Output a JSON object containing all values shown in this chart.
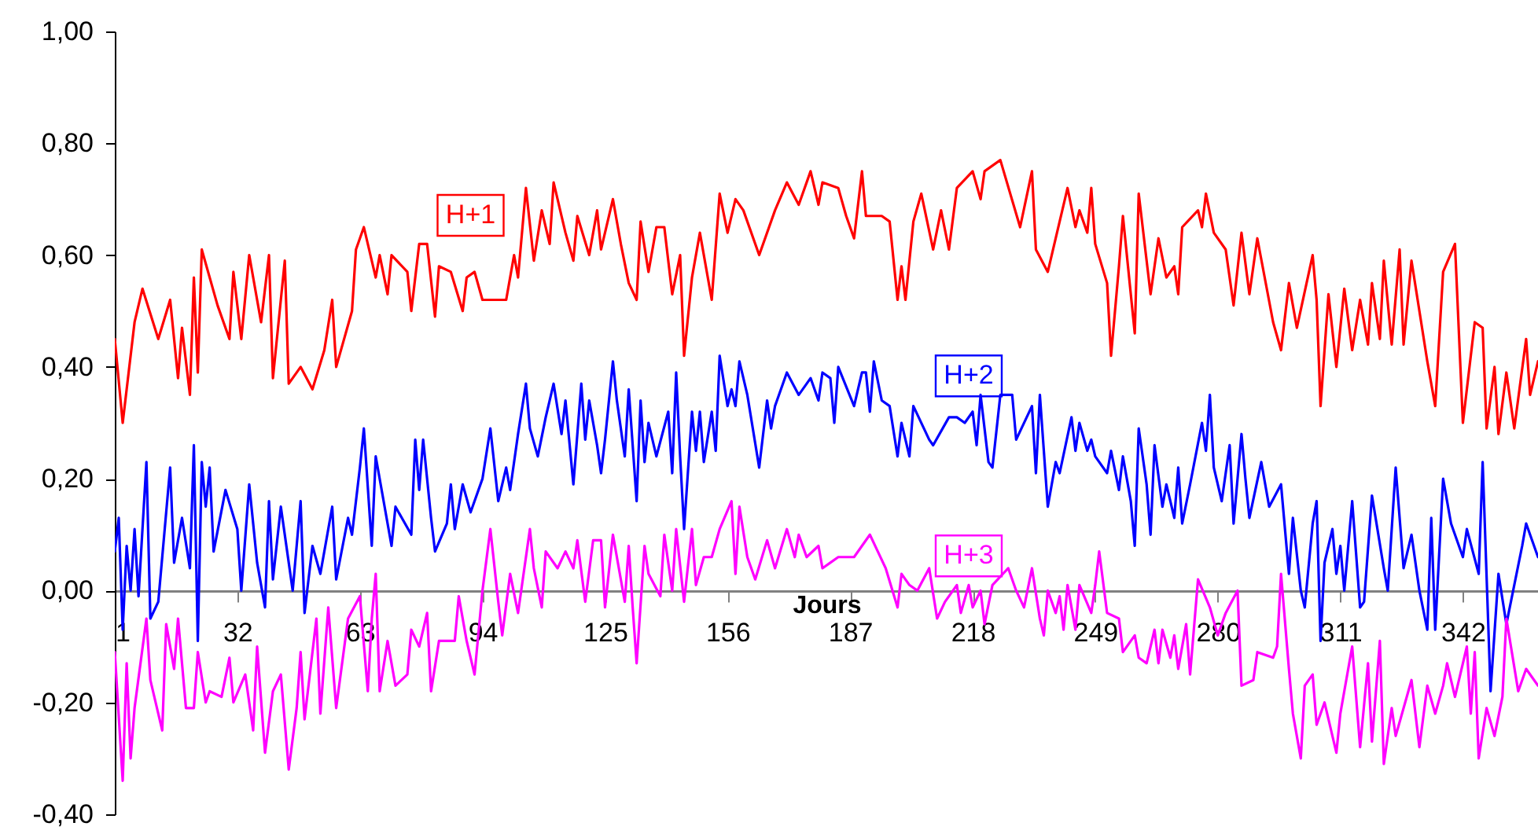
{
  "chart_data": {
    "type": "line",
    "xlabel": "Jours",
    "xlim": [
      1,
      361
    ],
    "xticks": [
      1,
      32,
      63,
      94,
      125,
      156,
      187,
      218,
      249,
      280,
      311,
      342
    ],
    "ylim": [
      -0.4,
      1
    ],
    "yticks": [
      {
        "value": -0.4,
        "label": "-0,40"
      },
      {
        "value": -0.2,
        "label": "-0,20"
      },
      {
        "value": 0,
        "label": "0,00"
      },
      {
        "value": 0.2,
        "label": "0,20"
      },
      {
        "value": 0.4,
        "label": "0,40"
      },
      {
        "value": 0.6,
        "label": "0,60"
      },
      {
        "value": 0.8,
        "label": "0,80"
      },
      {
        "value": 1,
        "label": "1,00"
      }
    ],
    "series": [
      {
        "name": "H+1",
        "color": "#ff0000",
        "x": [
          1,
          3,
          6,
          8,
          12,
          15,
          17,
          18,
          20,
          21,
          22,
          23,
          27,
          30,
          31,
          33,
          35,
          38,
          40,
          41,
          44,
          45,
          48,
          51,
          54,
          56,
          57,
          61,
          62,
          64,
          67,
          68,
          70,
          71,
          75,
          76,
          78,
          80,
          82,
          83,
          86,
          89,
          90,
          92,
          94,
          98,
          100,
          102,
          103,
          105,
          107,
          109,
          111,
          112,
          114,
          115,
          117,
          118,
          121,
          123,
          124,
          127,
          129,
          131,
          133,
          134,
          136,
          138,
          140,
          142,
          144,
          145,
          147,
          149,
          152,
          154,
          156,
          158,
          160,
          164,
          168,
          171,
          174,
          177,
          179,
          180,
          184,
          186,
          188,
          190,
          191,
          195,
          197,
          199,
          200,
          201,
          203,
          205,
          208,
          210,
          212,
          214,
          218,
          220,
          221,
          225,
          230,
          233,
          234,
          237,
          239,
          242,
          244,
          245,
          247,
          248,
          249,
          252,
          253,
          255,
          256,
          259,
          260,
          263,
          265,
          267,
          269,
          270,
          271,
          275,
          276,
          277,
          279,
          282,
          284,
          286,
          288,
          290,
          294,
          296,
          298,
          300,
          304,
          305,
          306,
          308,
          310,
          312,
          314,
          316,
          318,
          319,
          321,
          322,
          324,
          326,
          327,
          329,
          333,
          335,
          337,
          340,
          342,
          345,
          347,
          348,
          350,
          351,
          353,
          355,
          358,
          359,
          361
        ],
        "values": [
          0.45,
          0.3,
          0.48,
          0.54,
          0.45,
          0.52,
          0.38,
          0.47,
          0.35,
          0.56,
          0.39,
          0.61,
          0.51,
          0.45,
          0.57,
          0.45,
          0.6,
          0.48,
          0.6,
          0.38,
          0.59,
          0.37,
          0.4,
          0.36,
          0.43,
          0.52,
          0.4,
          0.5,
          0.61,
          0.65,
          0.56,
          0.6,
          0.53,
          0.6,
          0.57,
          0.5,
          0.62,
          0.62,
          0.49,
          0.58,
          0.57,
          0.5,
          0.56,
          0.57,
          0.52,
          0.52,
          0.52,
          0.6,
          0.56,
          0.72,
          0.59,
          0.68,
          0.62,
          0.73,
          0.67,
          0.64,
          0.59,
          0.67,
          0.6,
          0.68,
          0.61,
          0.7,
          0.62,
          0.55,
          0.52,
          0.66,
          0.57,
          0.65,
          0.65,
          0.53,
          0.6,
          0.42,
          0.56,
          0.64,
          0.52,
          0.71,
          0.64,
          0.7,
          0.68,
          0.6,
          0.68,
          0.73,
          0.69,
          0.75,
          0.69,
          0.73,
          0.72,
          0.67,
          0.63,
          0.75,
          0.67,
          0.67,
          0.66,
          0.52,
          0.58,
          0.52,
          0.66,
          0.71,
          0.61,
          0.68,
          0.61,
          0.72,
          0.75,
          0.7,
          0.75,
          0.77,
          0.65,
          0.75,
          0.61,
          0.57,
          0.63,
          0.72,
          0.65,
          0.68,
          0.64,
          0.72,
          0.62,
          0.55,
          0.42,
          0.58,
          0.67,
          0.46,
          0.71,
          0.53,
          0.63,
          0.56,
          0.58,
          0.53,
          0.65,
          0.68,
          0.65,
          0.71,
          0.64,
          0.61,
          0.51,
          0.64,
          0.53,
          0.63,
          0.48,
          0.43,
          0.55,
          0.47,
          0.6,
          0.52,
          0.33,
          0.53,
          0.4,
          0.54,
          0.43,
          0.52,
          0.44,
          0.55,
          0.45,
          0.59,
          0.44,
          0.61,
          0.44,
          0.59,
          0.41,
          0.33,
          0.57,
          0.62,
          0.3,
          0.48,
          0.47,
          0.29,
          0.4,
          0.28,
          0.39,
          0.29,
          0.45,
          0.35,
          0.41
        ]
      },
      {
        "name": "H+2",
        "color": "#0000ff",
        "x": [
          1,
          2,
          3,
          4,
          5,
          6,
          7,
          9,
          10,
          12,
          15,
          16,
          18,
          20,
          21,
          22,
          23,
          24,
          25,
          26,
          29,
          32,
          33,
          35,
          37,
          39,
          40,
          41,
          43,
          46,
          48,
          49,
          51,
          53,
          56,
          57,
          60,
          61,
          63,
          64,
          66,
          67,
          71,
          72,
          76,
          77,
          78,
          79,
          81,
          82,
          85,
          86,
          87,
          89,
          91,
          94,
          96,
          98,
          100,
          101,
          103,
          105,
          106,
          108,
          110,
          112,
          114,
          115,
          117,
          119,
          120,
          121,
          123,
          124,
          125,
          127,
          128,
          130,
          131,
          133,
          134,
          135,
          136,
          138,
          141,
          142,
          143,
          144,
          145,
          147,
          148,
          149,
          150,
          152,
          153,
          154,
          156,
          157,
          158,
          159,
          161,
          164,
          166,
          167,
          168,
          171,
          174,
          177,
          179,
          180,
          182,
          183,
          184,
          188,
          190,
          191,
          192,
          193,
          195,
          197,
          199,
          200,
          202,
          203,
          207,
          208,
          212,
          214,
          216,
          218,
          219,
          220,
          222,
          223,
          225,
          228,
          229,
          233,
          234,
          235,
          237,
          239,
          240,
          243,
          244,
          245,
          247,
          248,
          249,
          252,
          253,
          255,
          256,
          258,
          259,
          260,
          262,
          263,
          264,
          266,
          267,
          269,
          270,
          271,
          273,
          276,
          277,
          278,
          279,
          281,
          283,
          284,
          286,
          287,
          288,
          291,
          293,
          296,
          298,
          299,
          301,
          302,
          304,
          305,
          306,
          307,
          309,
          310,
          311,
          312,
          314,
          316,
          317,
          319,
          322,
          323,
          325,
          327,
          329,
          331,
          333,
          334,
          335,
          337,
          339,
          342,
          343,
          346,
          347,
          349,
          351,
          353,
          357,
          358,
          361
        ],
        "values": [
          0.07,
          0.13,
          -0.07,
          0.08,
          0.0,
          0.11,
          -0.01,
          0.23,
          -0.05,
          -0.02,
          0.22,
          0.05,
          0.13,
          0.04,
          0.26,
          -0.09,
          0.23,
          0.15,
          0.22,
          0.07,
          0.18,
          0.11,
          0.0,
          0.19,
          0.05,
          -0.03,
          0.16,
          0.02,
          0.15,
          0.0,
          0.16,
          -0.04,
          0.08,
          0.03,
          0.15,
          0.02,
          0.13,
          0.1,
          0.22,
          0.29,
          0.08,
          0.24,
          0.08,
          0.15,
          0.1,
          0.27,
          0.18,
          0.27,
          0.13,
          0.07,
          0.12,
          0.19,
          0.11,
          0.19,
          0.14,
          0.2,
          0.29,
          0.16,
          0.22,
          0.18,
          0.28,
          0.37,
          0.29,
          0.24,
          0.31,
          0.37,
          0.28,
          0.34,
          0.19,
          0.37,
          0.27,
          0.34,
          0.26,
          0.21,
          0.27,
          0.41,
          0.34,
          0.24,
          0.36,
          0.16,
          0.34,
          0.23,
          0.3,
          0.24,
          0.32,
          0.21,
          0.39,
          0.24,
          0.11,
          0.32,
          0.25,
          0.32,
          0.23,
          0.32,
          0.25,
          0.42,
          0.33,
          0.36,
          0.33,
          0.41,
          0.35,
          0.22,
          0.34,
          0.29,
          0.33,
          0.39,
          0.35,
          0.38,
          0.34,
          0.39,
          0.38,
          0.3,
          0.4,
          0.33,
          0.39,
          0.39,
          0.32,
          0.41,
          0.34,
          0.33,
          0.24,
          0.3,
          0.24,
          0.33,
          0.27,
          0.26,
          0.31,
          0.31,
          0.3,
          0.32,
          0.26,
          0.35,
          0.23,
          0.22,
          0.35,
          0.35,
          0.27,
          0.33,
          0.21,
          0.35,
          0.15,
          0.23,
          0.21,
          0.31,
          0.25,
          0.3,
          0.25,
          0.27,
          0.24,
          0.21,
          0.25,
          0.18,
          0.24,
          0.16,
          0.08,
          0.29,
          0.19,
          0.1,
          0.26,
          0.15,
          0.19,
          0.13,
          0.22,
          0.12,
          0.19,
          0.3,
          0.25,
          0.35,
          0.22,
          0.16,
          0.26,
          0.12,
          0.28,
          0.2,
          0.13,
          0.23,
          0.15,
          0.19,
          0.03,
          0.13,
          0.0,
          -0.03,
          0.12,
          0.16,
          -0.09,
          0.05,
          0.11,
          0.03,
          0.08,
          0.0,
          0.16,
          -0.03,
          -0.02,
          0.17,
          0.04,
          0.0,
          0.22,
          0.04,
          0.1,
          0.0,
          -0.07,
          0.13,
          -0.07,
          0.2,
          0.12,
          0.06,
          0.11,
          0.03,
          0.23,
          -0.18,
          0.03,
          -0.06,
          0.08,
          0.12,
          0.06
        ]
      },
      {
        "name": "H+3",
        "color": "#ff00ff",
        "x": [
          1,
          3,
          4,
          5,
          6,
          9,
          10,
          13,
          14,
          16,
          17,
          19,
          21,
          22,
          24,
          25,
          28,
          30,
          31,
          34,
          36,
          37,
          39,
          41,
          43,
          45,
          47,
          48,
          49,
          52,
          53,
          55,
          57,
          60,
          63,
          65,
          66,
          67,
          68,
          70,
          72,
          75,
          76,
          78,
          80,
          81,
          83,
          87,
          88,
          90,
          92,
          94,
          96,
          98,
          99,
          101,
          103,
          106,
          107,
          109,
          110,
          113,
          115,
          117,
          118,
          120,
          122,
          124,
          125,
          127,
          130,
          131,
          132,
          133,
          135,
          136,
          139,
          140,
          142,
          143,
          145,
          147,
          148,
          150,
          152,
          154,
          157,
          158,
          159,
          161,
          163,
          166,
          168,
          171,
          173,
          174,
          176,
          179,
          180,
          182,
          184,
          188,
          190,
          192,
          194,
          196,
          199,
          200,
          202,
          204,
          207,
          209,
          211,
          214,
          215,
          217,
          218,
          220,
          221,
          223,
          227,
          229,
          231,
          233,
          235,
          236,
          237,
          239,
          240,
          241,
          242,
          244,
          245,
          248,
          249,
          250,
          252,
          255,
          256,
          259,
          260,
          262,
          264,
          265,
          266,
          268,
          269,
          270,
          272,
          273,
          275,
          278,
          280,
          282,
          285,
          286,
          289,
          290,
          294,
          295,
          296,
          298,
          299,
          301,
          302,
          304,
          305,
          307,
          310,
          311,
          314,
          316,
          318,
          319,
          321,
          322,
          324,
          325,
          329,
          331,
          333,
          335,
          337,
          338,
          340,
          343,
          344,
          345,
          346,
          348,
          350,
          352,
          353,
          356,
          358,
          361
        ],
        "values": [
          -0.11,
          -0.34,
          -0.13,
          -0.3,
          -0.21,
          -0.05,
          -0.16,
          -0.25,
          -0.06,
          -0.14,
          -0.05,
          -0.21,
          -0.21,
          -0.11,
          -0.2,
          -0.18,
          -0.19,
          -0.12,
          -0.2,
          -0.15,
          -0.25,
          -0.1,
          -0.29,
          -0.18,
          -0.15,
          -0.32,
          -0.21,
          -0.11,
          -0.23,
          -0.05,
          -0.22,
          -0.03,
          -0.21,
          -0.05,
          -0.01,
          -0.18,
          -0.05,
          0.03,
          -0.18,
          -0.09,
          -0.17,
          -0.15,
          -0.07,
          -0.1,
          -0.04,
          -0.18,
          -0.09,
          -0.09,
          -0.01,
          -0.09,
          -0.15,
          0.0,
          0.11,
          -0.02,
          -0.08,
          0.03,
          -0.04,
          0.11,
          0.04,
          -0.03,
          0.07,
          0.04,
          0.07,
          0.04,
          0.09,
          -0.02,
          0.09,
          0.09,
          -0.03,
          0.1,
          -0.02,
          0.08,
          -0.03,
          -0.13,
          0.08,
          0.03,
          -0.01,
          0.1,
          0.0,
          0.11,
          -0.02,
          0.11,
          0.01,
          0.06,
          0.06,
          0.11,
          0.16,
          0.03,
          0.15,
          0.06,
          0.02,
          0.09,
          0.04,
          0.11,
          0.06,
          0.1,
          0.06,
          0.08,
          0.04,
          0.05,
          0.06,
          0.06,
          0.08,
          0.1,
          0.07,
          0.04,
          -0.03,
          0.03,
          0.01,
          0.0,
          0.04,
          -0.05,
          -0.02,
          0.01,
          -0.04,
          0.01,
          -0.03,
          0.0,
          -0.06,
          0.01,
          0.04,
          0.0,
          -0.03,
          0.04,
          -0.05,
          -0.08,
          0.0,
          -0.04,
          -0.01,
          -0.07,
          0.01,
          -0.07,
          0.01,
          -0.04,
          0.01,
          0.07,
          -0.04,
          -0.05,
          -0.11,
          -0.08,
          -0.12,
          -0.13,
          -0.07,
          -0.13,
          -0.07,
          -0.12,
          -0.08,
          -0.14,
          -0.06,
          -0.15,
          0.02,
          -0.03,
          -0.08,
          -0.04,
          0.0,
          -0.17,
          -0.16,
          -0.11,
          -0.12,
          -0.1,
          0.03,
          -0.14,
          -0.22,
          -0.3,
          -0.17,
          -0.15,
          -0.24,
          -0.2,
          -0.29,
          -0.22,
          -0.1,
          -0.28,
          -0.13,
          -0.27,
          -0.09,
          -0.31,
          -0.21,
          -0.26,
          -0.16,
          -0.28,
          -0.17,
          -0.22,
          -0.17,
          -0.13,
          -0.19,
          -0.1,
          -0.22,
          -0.11,
          -0.3,
          -0.21,
          -0.26,
          -0.19,
          -0.05,
          -0.18,
          -0.14,
          -0.17
        ]
      }
    ]
  }
}
